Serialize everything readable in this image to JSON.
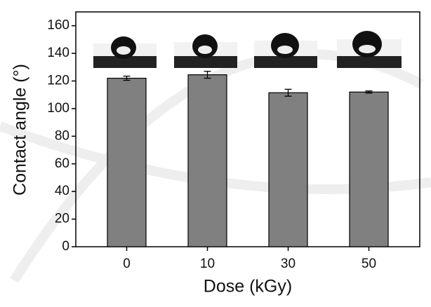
{
  "chart_data": {
    "type": "bar",
    "x_label": "Dose (kGy)",
    "y_label": "Contact angle (°)",
    "categories": [
      "0",
      "10",
      "30",
      "50"
    ],
    "values": [
      122,
      124.5,
      111.5,
      112
    ],
    "errors": [
      1.5,
      2.5,
      2.5,
      0.8
    ],
    "color": "#808080",
    "ylim": [
      0,
      170
    ],
    "yticks": [
      0,
      20,
      40,
      60,
      80,
      100,
      120,
      140,
      160
    ]
  }
}
